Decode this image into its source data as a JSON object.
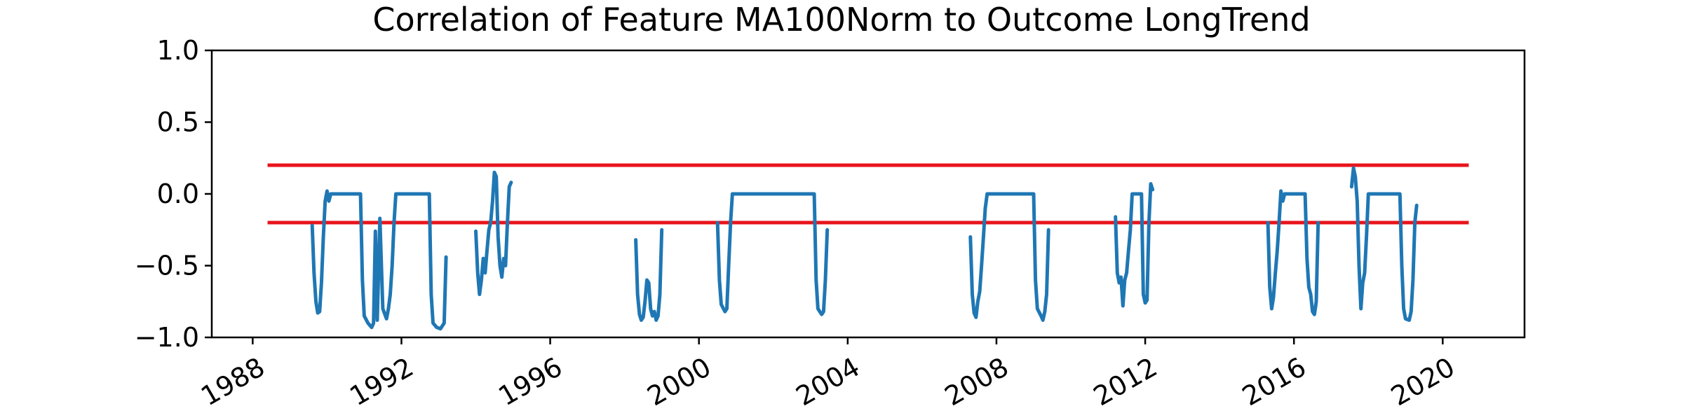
{
  "chart_data": {
    "type": "line",
    "title": "Correlation of Feature MA100Norm to Outcome LongTrend",
    "xlabel": "",
    "ylabel": "",
    "xlim": [
      1986.9,
      2022.2
    ],
    "ylim": [
      -1.0,
      1.0
    ],
    "x_ticks": [
      "1988",
      "1992",
      "1996",
      "2000",
      "2004",
      "2008",
      "2012",
      "2016",
      "2020"
    ],
    "y_ticks": [
      "1.0",
      "0.5",
      "0.0",
      "−0.5",
      "−1.0"
    ],
    "grid": false,
    "legend": "none",
    "colors": {
      "series": "#1f77b4",
      "thresholds": "#e8141b"
    },
    "thresholds": [
      {
        "y": 0.2,
        "x_start": 1988.4,
        "x_end": 2020.7
      },
      {
        "y": -0.2,
        "x_start": 1988.4,
        "x_end": 2020.7
      }
    ],
    "series": [
      {
        "segments": [
          [
            [
              1989.6,
              -0.22
            ],
            [
              1989.65,
              -0.55
            ],
            [
              1989.7,
              -0.75
            ],
            [
              1989.75,
              -0.83
            ],
            [
              1989.8,
              -0.82
            ],
            [
              1989.85,
              -0.62
            ],
            [
              1989.9,
              -0.3
            ],
            [
              1989.95,
              -0.05
            ],
            [
              1990.0,
              0.02
            ],
            [
              1990.05,
              -0.05
            ],
            [
              1990.1,
              0.0
            ],
            [
              1990.9,
              0.0
            ],
            [
              1990.95,
              -0.6
            ],
            [
              1991.0,
              -0.85
            ],
            [
              1991.1,
              -0.9
            ],
            [
              1991.2,
              -0.93
            ],
            [
              1991.25,
              -0.9
            ],
            [
              1991.3,
              -0.26
            ],
            [
              1991.35,
              -0.88
            ],
            [
              1991.42,
              -0.17
            ],
            [
              1991.5,
              -0.8
            ],
            [
              1991.6,
              -0.87
            ],
            [
              1991.65,
              -0.8
            ],
            [
              1991.7,
              -0.7
            ],
            [
              1991.75,
              -0.5
            ],
            [
              1991.8,
              -0.2
            ],
            [
              1991.85,
              0.0
            ],
            [
              1992.75,
              0.0
            ],
            [
              1992.8,
              -0.7
            ],
            [
              1992.85,
              -0.9
            ],
            [
              1992.95,
              -0.93
            ],
            [
              1993.05,
              -0.94
            ],
            [
              1993.15,
              -0.9
            ],
            [
              1993.2,
              -0.44
            ]
          ],
          [
            [
              1994.0,
              -0.26
            ],
            [
              1994.05,
              -0.55
            ],
            [
              1994.1,
              -0.7
            ],
            [
              1994.15,
              -0.6
            ],
            [
              1994.2,
              -0.45
            ],
            [
              1994.25,
              -0.55
            ],
            [
              1994.3,
              -0.4
            ],
            [
              1994.35,
              -0.25
            ],
            [
              1994.4,
              -0.2
            ],
            [
              1994.45,
              -0.05
            ],
            [
              1994.5,
              0.15
            ],
            [
              1994.55,
              0.12
            ],
            [
              1994.6,
              -0.3
            ],
            [
              1994.65,
              -0.5
            ],
            [
              1994.7,
              -0.58
            ],
            [
              1994.75,
              -0.45
            ],
            [
              1994.8,
              -0.5
            ],
            [
              1994.85,
              -0.2
            ],
            [
              1994.9,
              0.05
            ],
            [
              1994.95,
              0.08
            ]
          ],
          [
            [
              1998.3,
              -0.32
            ],
            [
              1998.35,
              -0.7
            ],
            [
              1998.4,
              -0.84
            ],
            [
              1998.45,
              -0.88
            ],
            [
              1998.5,
              -0.86
            ],
            [
              1998.55,
              -0.75
            ],
            [
              1998.6,
              -0.6
            ],
            [
              1998.65,
              -0.62
            ],
            [
              1998.7,
              -0.8
            ],
            [
              1998.75,
              -0.85
            ],
            [
              1998.8,
              -0.82
            ],
            [
              1998.85,
              -0.88
            ],
            [
              1998.9,
              -0.85
            ],
            [
              1998.95,
              -0.7
            ],
            [
              1999.0,
              -0.25
            ]
          ],
          [
            [
              2000.5,
              -0.2
            ],
            [
              2000.55,
              -0.6
            ],
            [
              2000.6,
              -0.77
            ],
            [
              2000.7,
              -0.82
            ],
            [
              2000.75,
              -0.8
            ],
            [
              2000.8,
              -0.5
            ],
            [
              2000.85,
              -0.2
            ],
            [
              2000.9,
              0.0
            ],
            [
              2003.1,
              0.0
            ],
            [
              2003.15,
              -0.6
            ],
            [
              2003.2,
              -0.8
            ],
            [
              2003.3,
              -0.84
            ],
            [
              2003.35,
              -0.82
            ],
            [
              2003.4,
              -0.6
            ],
            [
              2003.45,
              -0.25
            ]
          ],
          [
            [
              2007.3,
              -0.3
            ],
            [
              2007.35,
              -0.7
            ],
            [
              2007.4,
              -0.83
            ],
            [
              2007.45,
              -0.86
            ],
            [
              2007.5,
              -0.75
            ],
            [
              2007.55,
              -0.68
            ],
            [
              2007.6,
              -0.5
            ],
            [
              2007.65,
              -0.3
            ],
            [
              2007.7,
              -0.1
            ],
            [
              2007.75,
              0.0
            ],
            [
              2009.0,
              0.0
            ],
            [
              2009.05,
              -0.6
            ],
            [
              2009.1,
              -0.8
            ],
            [
              2009.2,
              -0.85
            ],
            [
              2009.25,
              -0.88
            ],
            [
              2009.3,
              -0.82
            ],
            [
              2009.35,
              -0.7
            ],
            [
              2009.4,
              -0.25
            ]
          ],
          [
            [
              2011.2,
              -0.16
            ],
            [
              2011.25,
              -0.55
            ],
            [
              2011.3,
              -0.62
            ],
            [
              2011.35,
              -0.58
            ],
            [
              2011.4,
              -0.78
            ],
            [
              2011.45,
              -0.6
            ],
            [
              2011.5,
              -0.55
            ],
            [
              2011.55,
              -0.4
            ],
            [
              2011.6,
              -0.25
            ],
            [
              2011.65,
              0.0
            ],
            [
              2011.9,
              0.0
            ],
            [
              2011.95,
              -0.7
            ],
            [
              2012.0,
              -0.76
            ],
            [
              2012.05,
              -0.74
            ],
            [
              2012.1,
              -0.2
            ],
            [
              2012.15,
              0.07
            ],
            [
              2012.2,
              0.03
            ]
          ],
          [
            [
              2015.3,
              -0.2
            ],
            [
              2015.35,
              -0.65
            ],
            [
              2015.4,
              -0.8
            ],
            [
              2015.45,
              -0.72
            ],
            [
              2015.5,
              -0.55
            ],
            [
              2015.55,
              -0.4
            ],
            [
              2015.6,
              -0.2
            ],
            [
              2015.65,
              0.02
            ],
            [
              2015.7,
              -0.05
            ],
            [
              2015.75,
              0.0
            ],
            [
              2016.3,
              0.0
            ],
            [
              2016.35,
              -0.45
            ],
            [
              2016.4,
              -0.65
            ],
            [
              2016.45,
              -0.7
            ],
            [
              2016.5,
              -0.82
            ],
            [
              2016.55,
              -0.84
            ],
            [
              2016.6,
              -0.75
            ],
            [
              2016.65,
              -0.2
            ]
          ],
          [
            [
              2017.55,
              0.05
            ],
            [
              2017.6,
              0.18
            ],
            [
              2017.65,
              0.12
            ],
            [
              2017.7,
              -0.05
            ],
            [
              2017.75,
              -0.5
            ],
            [
              2017.8,
              -0.8
            ],
            [
              2017.85,
              -0.62
            ],
            [
              2017.9,
              -0.55
            ],
            [
              2017.95,
              -0.3
            ],
            [
              2018.0,
              0.0
            ],
            [
              2018.85,
              0.0
            ],
            [
              2018.9,
              -0.5
            ],
            [
              2018.95,
              -0.8
            ],
            [
              2019.0,
              -0.87
            ],
            [
              2019.1,
              -0.88
            ],
            [
              2019.15,
              -0.82
            ],
            [
              2019.2,
              -0.6
            ],
            [
              2019.25,
              -0.2
            ],
            [
              2019.3,
              -0.08
            ]
          ]
        ]
      }
    ]
  }
}
